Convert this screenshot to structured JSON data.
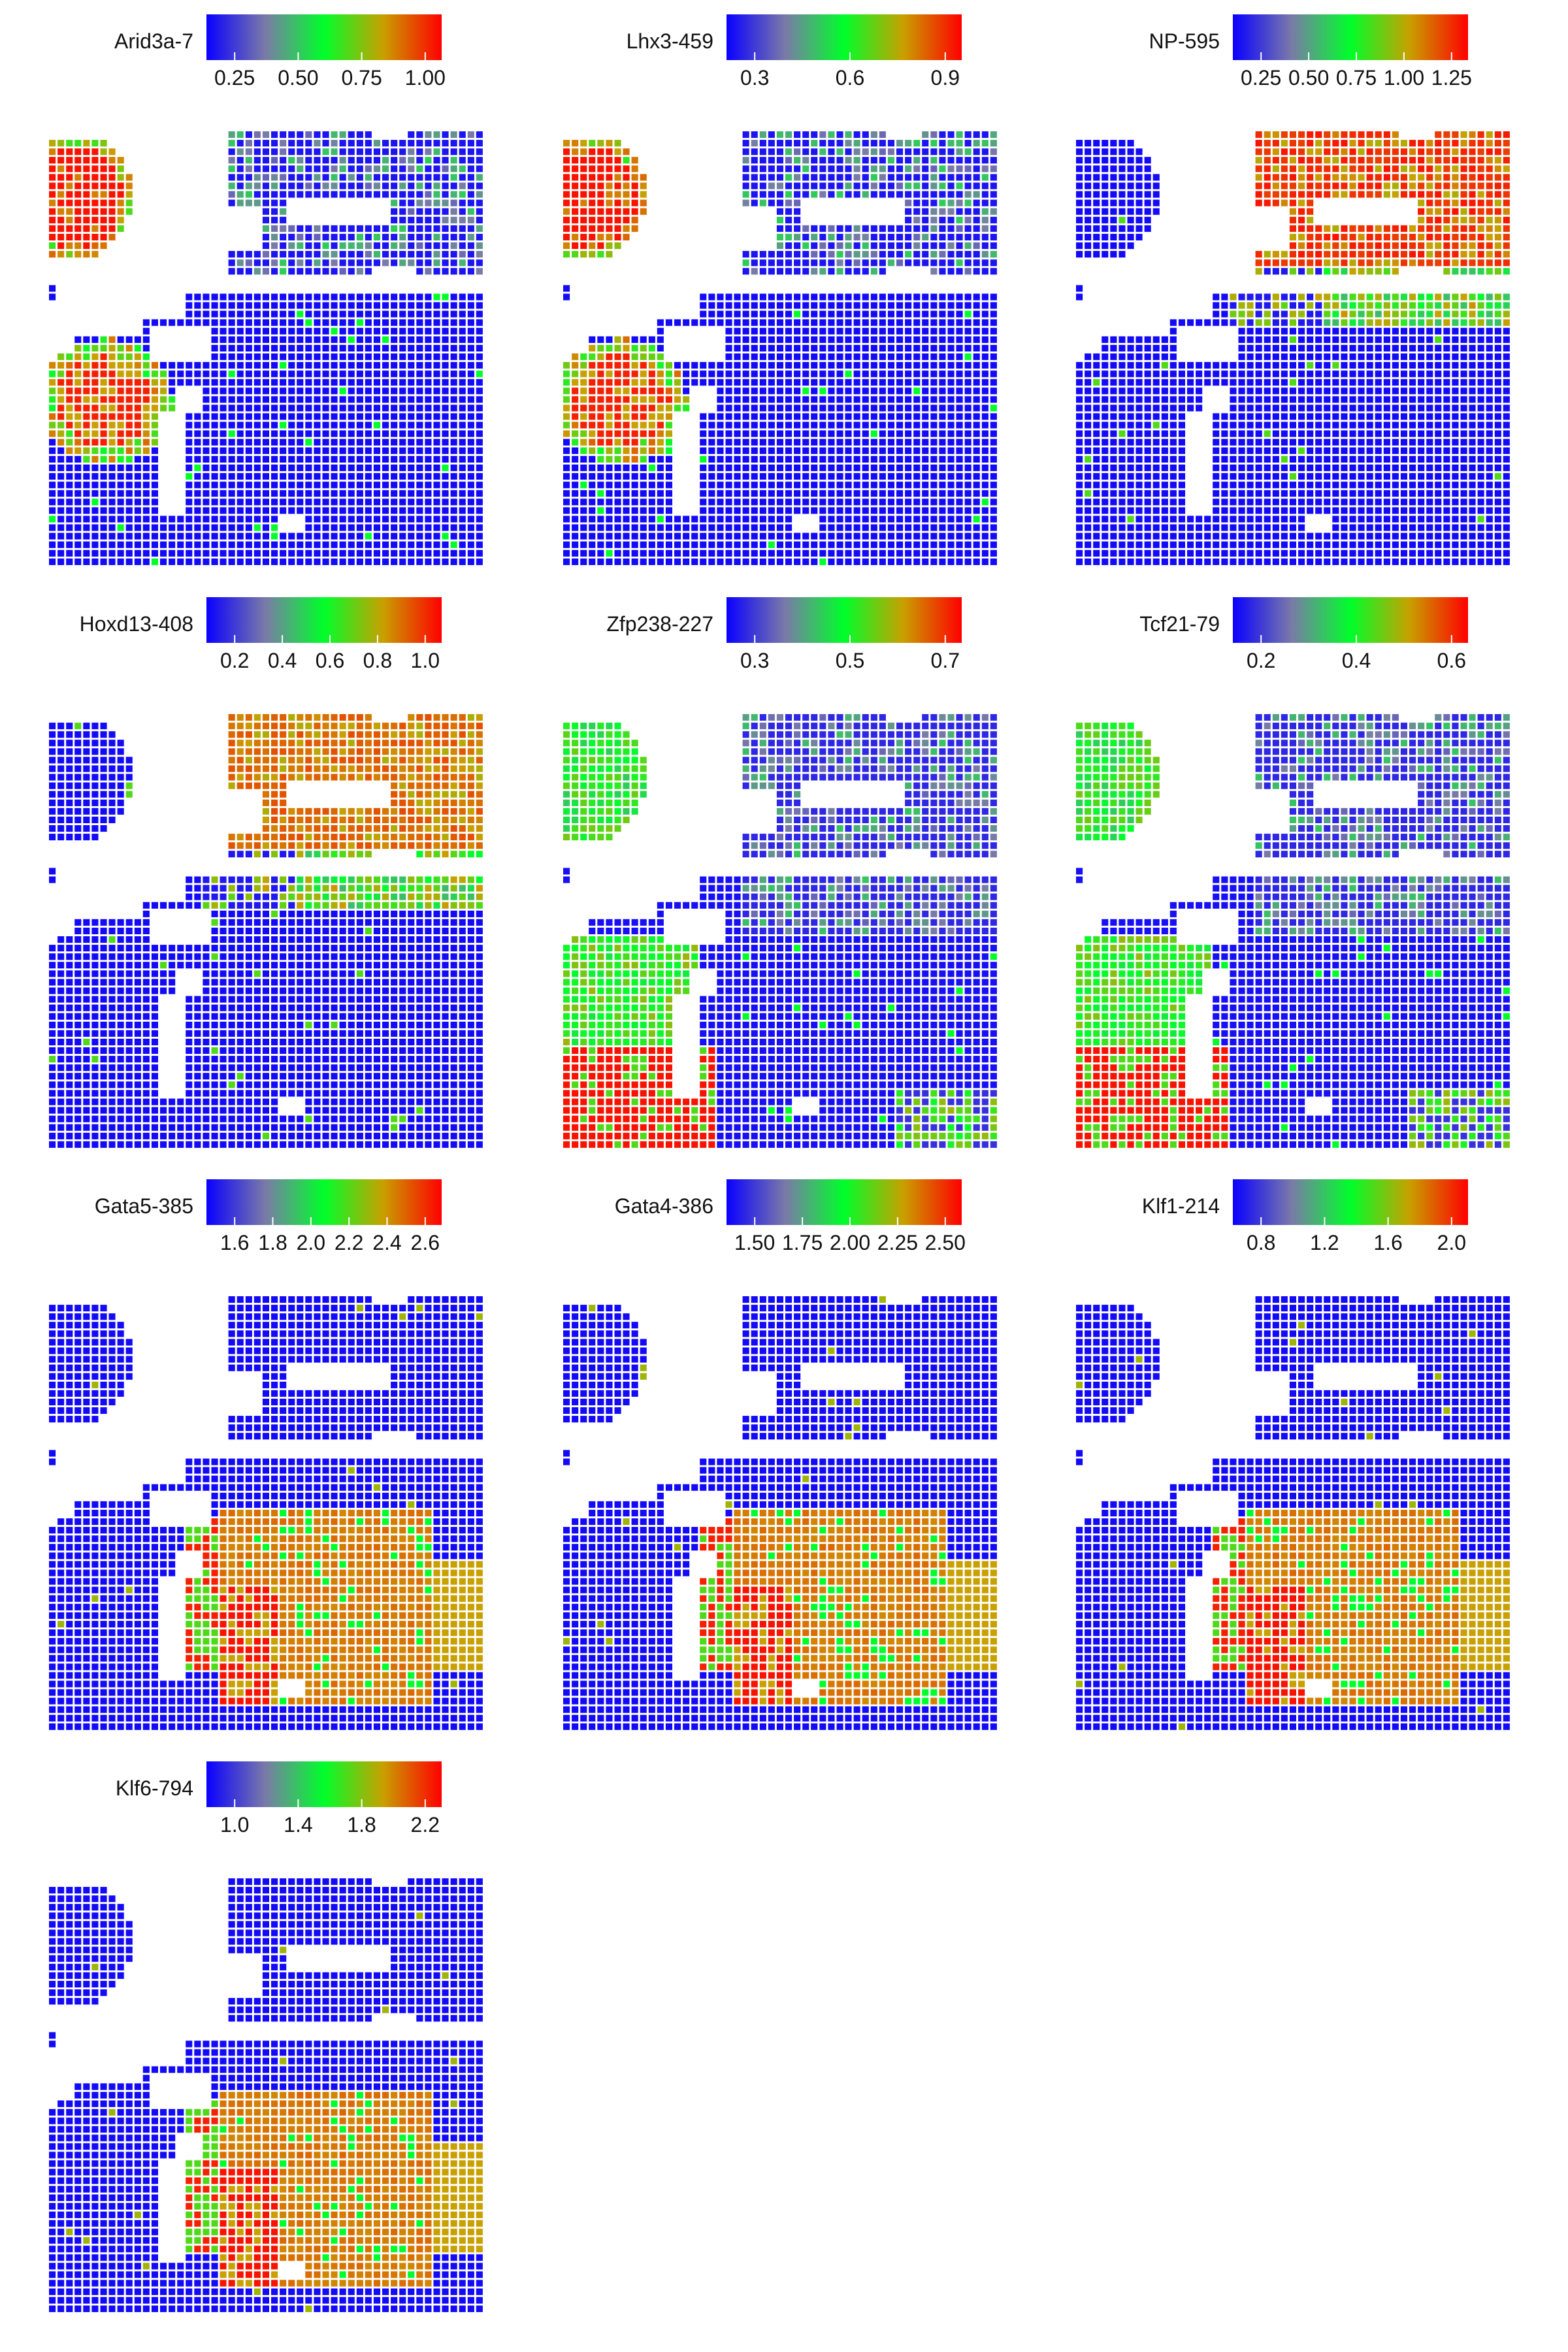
{
  "figure": {
    "type": "heatmap-grid",
    "colormap": [
      "#0a00ff",
      "#7a7aa8",
      "#00ff2a",
      "#c8a000",
      "#ff0000"
    ]
  },
  "chart_data": [
    {
      "type": "heatmap",
      "title": "Arid3a-7",
      "ticks": [
        "0.25",
        "0.50",
        "0.75",
        "1.00"
      ],
      "pattern": "arid"
    },
    {
      "type": "heatmap",
      "title": "Lhx3-459",
      "ticks": [
        "0.3",
        "0.6",
        "0.9"
      ],
      "pattern": "arid"
    },
    {
      "type": "heatmap",
      "title": "NP-595",
      "ticks": [
        "0.25",
        "0.50",
        "0.75",
        "1.00",
        "1.25"
      ],
      "pattern": "np"
    },
    {
      "type": "heatmap",
      "title": "Hoxd13-408",
      "ticks": [
        "0.2",
        "0.4",
        "0.6",
        "0.8",
        "1.0"
      ],
      "pattern": "hoxd"
    },
    {
      "type": "heatmap",
      "title": "Zfp238-227",
      "ticks": [
        "0.3",
        "0.5",
        "0.7"
      ],
      "pattern": "zfp"
    },
    {
      "type": "heatmap",
      "title": "Tcf21-79",
      "ticks": [
        "0.2",
        "0.4",
        "0.6"
      ],
      "pattern": "zfp"
    },
    {
      "type": "heatmap",
      "title": "Gata5-385",
      "ticks": [
        "1.6",
        "1.8",
        "2.0",
        "2.2",
        "2.4",
        "2.6"
      ],
      "pattern": "gata"
    },
    {
      "type": "heatmap",
      "title": "Gata4-386",
      "ticks": [
        "1.50",
        "1.75",
        "2.00",
        "2.25",
        "2.50"
      ],
      "pattern": "gata"
    },
    {
      "type": "heatmap",
      "title": "Klf1-214",
      "ticks": [
        "0.8",
        "1.2",
        "1.6",
        "2.0"
      ],
      "pattern": "gata"
    },
    {
      "type": "heatmap",
      "title": "Klf6-794",
      "ticks": [
        "1.0",
        "1.4",
        "1.8",
        "2.2"
      ],
      "pattern": "klf"
    }
  ]
}
